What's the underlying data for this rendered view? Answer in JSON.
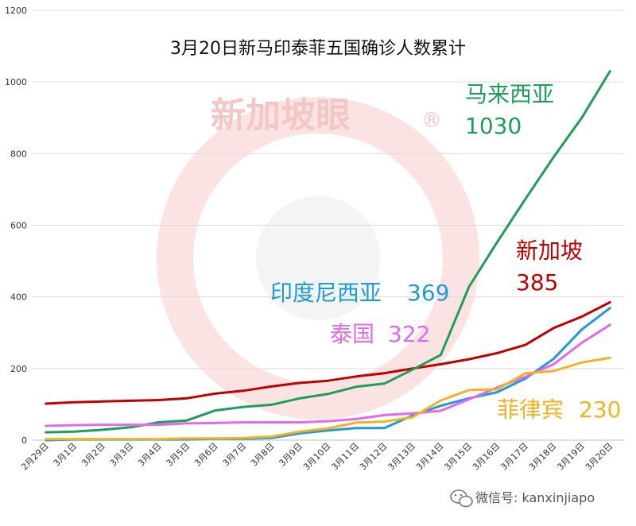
{
  "watermark": {
    "text": "新加坡眼",
    "mark": "®"
  },
  "footer": {
    "text": "微信号: kanxinjiapo",
    "icon": "wechat-icon"
  },
  "chart_data": {
    "type": "line",
    "title": "3月20日新马印泰菲五国确诊人数累计",
    "xlabel": "",
    "ylabel": "",
    "ylim": [
      0,
      1200
    ],
    "yticks": [
      0,
      200,
      400,
      600,
      800,
      1000,
      1200
    ],
    "grid": true,
    "legend": "inline labels",
    "x": [
      "2月29日",
      "3月1日",
      "3月2日",
      "3月3日",
      "3月4日",
      "3月5日",
      "3月6日",
      "3月7日",
      "3月8日",
      "3月9日",
      "3月10日",
      "3月11日",
      "3月12日",
      "3月13日",
      "3月14日",
      "3月15日",
      "3月16日",
      "3月17日",
      "3月18日",
      "3月19日",
      "3月20日"
    ],
    "series": [
      {
        "name": "新加坡",
        "label_value": "385",
        "color": "#c00000",
        "values": [
          102,
          106,
          108,
          110,
          112,
          117,
          130,
          138,
          150,
          160,
          166,
          178,
          187,
          200,
          212,
          226,
          243,
          266,
          313,
          345,
          385
        ]
      },
      {
        "name": "马来西亚",
        "label_value": "1030",
        "color": "#1e9e58",
        "values": [
          22,
          24,
          29,
          36,
          50,
          55,
          83,
          93,
          99,
          117,
          129,
          149,
          158,
          197,
          238,
          428,
          553,
          673,
          790,
          900,
          1030
        ]
      },
      {
        "name": "印度尼西亚",
        "label_value": "369",
        "color": "#1f9bd7",
        "values": [
          0,
          2,
          2,
          2,
          2,
          2,
          4,
          4,
          6,
          19,
          27,
          34,
          34,
          69,
          96,
          117,
          134,
          172,
          227,
          309,
          369
        ]
      },
      {
        "name": "泰国",
        "label_value": "322",
        "color": "#e36ae8",
        "values": [
          40,
          42,
          43,
          43,
          43,
          47,
          48,
          50,
          50,
          50,
          53,
          59,
          70,
          75,
          82,
          114,
          147,
          177,
          212,
          272,
          322
        ]
      },
      {
        "name": "菲律宾",
        "label_value": "230",
        "color": "#f0b323",
        "values": [
          3,
          3,
          3,
          3,
          3,
          5,
          5,
          6,
          10,
          24,
          33,
          49,
          52,
          64,
          111,
          140,
          142,
          187,
          193,
          217,
          230
        ]
      }
    ]
  }
}
